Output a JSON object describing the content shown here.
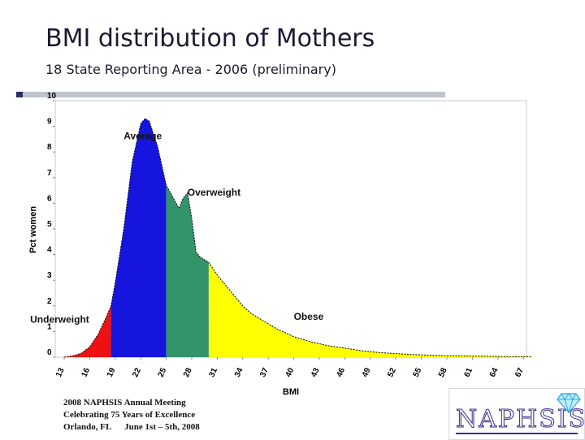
{
  "slide": {
    "title": "BMI distribution of Mothers",
    "subtitle": "18 State Reporting Area - 2006 (preliminary)"
  },
  "footer": {
    "line1": "2008 NAPHSIS Annual Meeting",
    "line2": "Celebrating 75 Years of Excellence",
    "line3": "Orlando, FL      June 1st – 5th, 2008"
  },
  "logo": {
    "text": "NAPHSIS",
    "icon": "diamond-icon"
  },
  "chart_data": {
    "type": "area",
    "title": "",
    "xlabel": "BMI",
    "ylabel": "Pct women",
    "xlim": [
      13,
      68
    ],
    "ylim": [
      0,
      10
    ],
    "yticks": [
      0,
      1,
      2,
      3,
      4,
      5,
      6,
      7,
      8,
      9,
      10
    ],
    "xticks": [
      13,
      16,
      19,
      22,
      25,
      28,
      31,
      34,
      37,
      40,
      43,
      46,
      49,
      52,
      55,
      58,
      61,
      64,
      67
    ],
    "grid": false,
    "series": [
      {
        "name": "Underweight",
        "color": "#ee1111",
        "x_range": [
          13,
          18.5
        ]
      },
      {
        "name": "Average",
        "color": "#1515dd",
        "x_range": [
          18.5,
          25
        ]
      },
      {
        "name": "Overweight",
        "color": "#33946a",
        "x_range": [
          25,
          30
        ]
      },
      {
        "name": "Obese",
        "color": "#ffff00",
        "x_range": [
          30,
          68
        ]
      }
    ],
    "points": [
      [
        13,
        0
      ],
      [
        14,
        0.05
      ],
      [
        15,
        0.15
      ],
      [
        16,
        0.4
      ],
      [
        17,
        0.9
      ],
      [
        18,
        1.6
      ],
      [
        18.5,
        2.0
      ],
      [
        19,
        2.9
      ],
      [
        20,
        5.0
      ],
      [
        21,
        7.6
      ],
      [
        22,
        9.1
      ],
      [
        22.5,
        9.3
      ],
      [
        23,
        9.2
      ],
      [
        24,
        8.2
      ],
      [
        25,
        6.7
      ],
      [
        26,
        6.1
      ],
      [
        26.5,
        5.8
      ],
      [
        27,
        6.2
      ],
      [
        27.5,
        6.4
      ],
      [
        28,
        5.4
      ],
      [
        28.5,
        4.1
      ],
      [
        29,
        3.9
      ],
      [
        30,
        3.7
      ],
      [
        31,
        3.2
      ],
      [
        32,
        2.8
      ],
      [
        33,
        2.4
      ],
      [
        34,
        2.0
      ],
      [
        35,
        1.7
      ],
      [
        36,
        1.5
      ],
      [
        37,
        1.3
      ],
      [
        38,
        1.1
      ],
      [
        40,
        0.8
      ],
      [
        42,
        0.6
      ],
      [
        44,
        0.45
      ],
      [
        46,
        0.35
      ],
      [
        48,
        0.25
      ],
      [
        50,
        0.18
      ],
      [
        52,
        0.14
      ],
      [
        54,
        0.1
      ],
      [
        56,
        0.08
      ],
      [
        58,
        0.06
      ],
      [
        60,
        0.05
      ],
      [
        62,
        0.04
      ],
      [
        64,
        0.03
      ],
      [
        66,
        0.02
      ],
      [
        68,
        0.02
      ]
    ],
    "annotations": [
      {
        "text": "Average",
        "x": 20,
        "y": 8.5
      },
      {
        "text": "Overweight",
        "x": 27.5,
        "y": 6.3
      },
      {
        "text": "Underweight",
        "x": 9,
        "y": 1.35
      },
      {
        "text": "Obese",
        "x": 40,
        "y": 1.45
      }
    ]
  }
}
